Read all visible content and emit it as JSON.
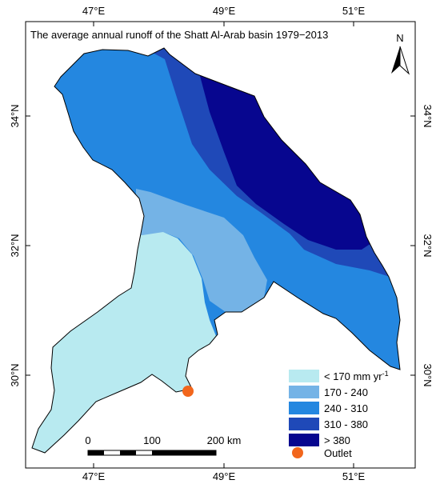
{
  "title": "The average annual runoff of the Shatt Al-Arab basin 1979−2013",
  "north_arrow": {
    "label": "N",
    "icon": "north-arrow-icon"
  },
  "axes": {
    "lon_labels": [
      "47°E",
      "49°E",
      "51°E"
    ],
    "lat_labels": [
      "34°N",
      "32°N",
      "30°N"
    ]
  },
  "legend": {
    "classes": [
      {
        "label": "< 170 mm yr",
        "superscript": "-1",
        "color": "#b8eaf0"
      },
      {
        "label": "170 - 240",
        "color": "#74b3e6"
      },
      {
        "label": "240 - 310",
        "color": "#2487e0"
      },
      {
        "label": "310 - 380",
        "color": "#1f49b8"
      },
      {
        "label": "> 380",
        "color": "#07068f"
      }
    ],
    "outlet": {
      "label": "Outlet",
      "color": "#f2661c"
    }
  },
  "scale_bar": {
    "labels": [
      "0",
      "100",
      "200 km"
    ]
  }
}
